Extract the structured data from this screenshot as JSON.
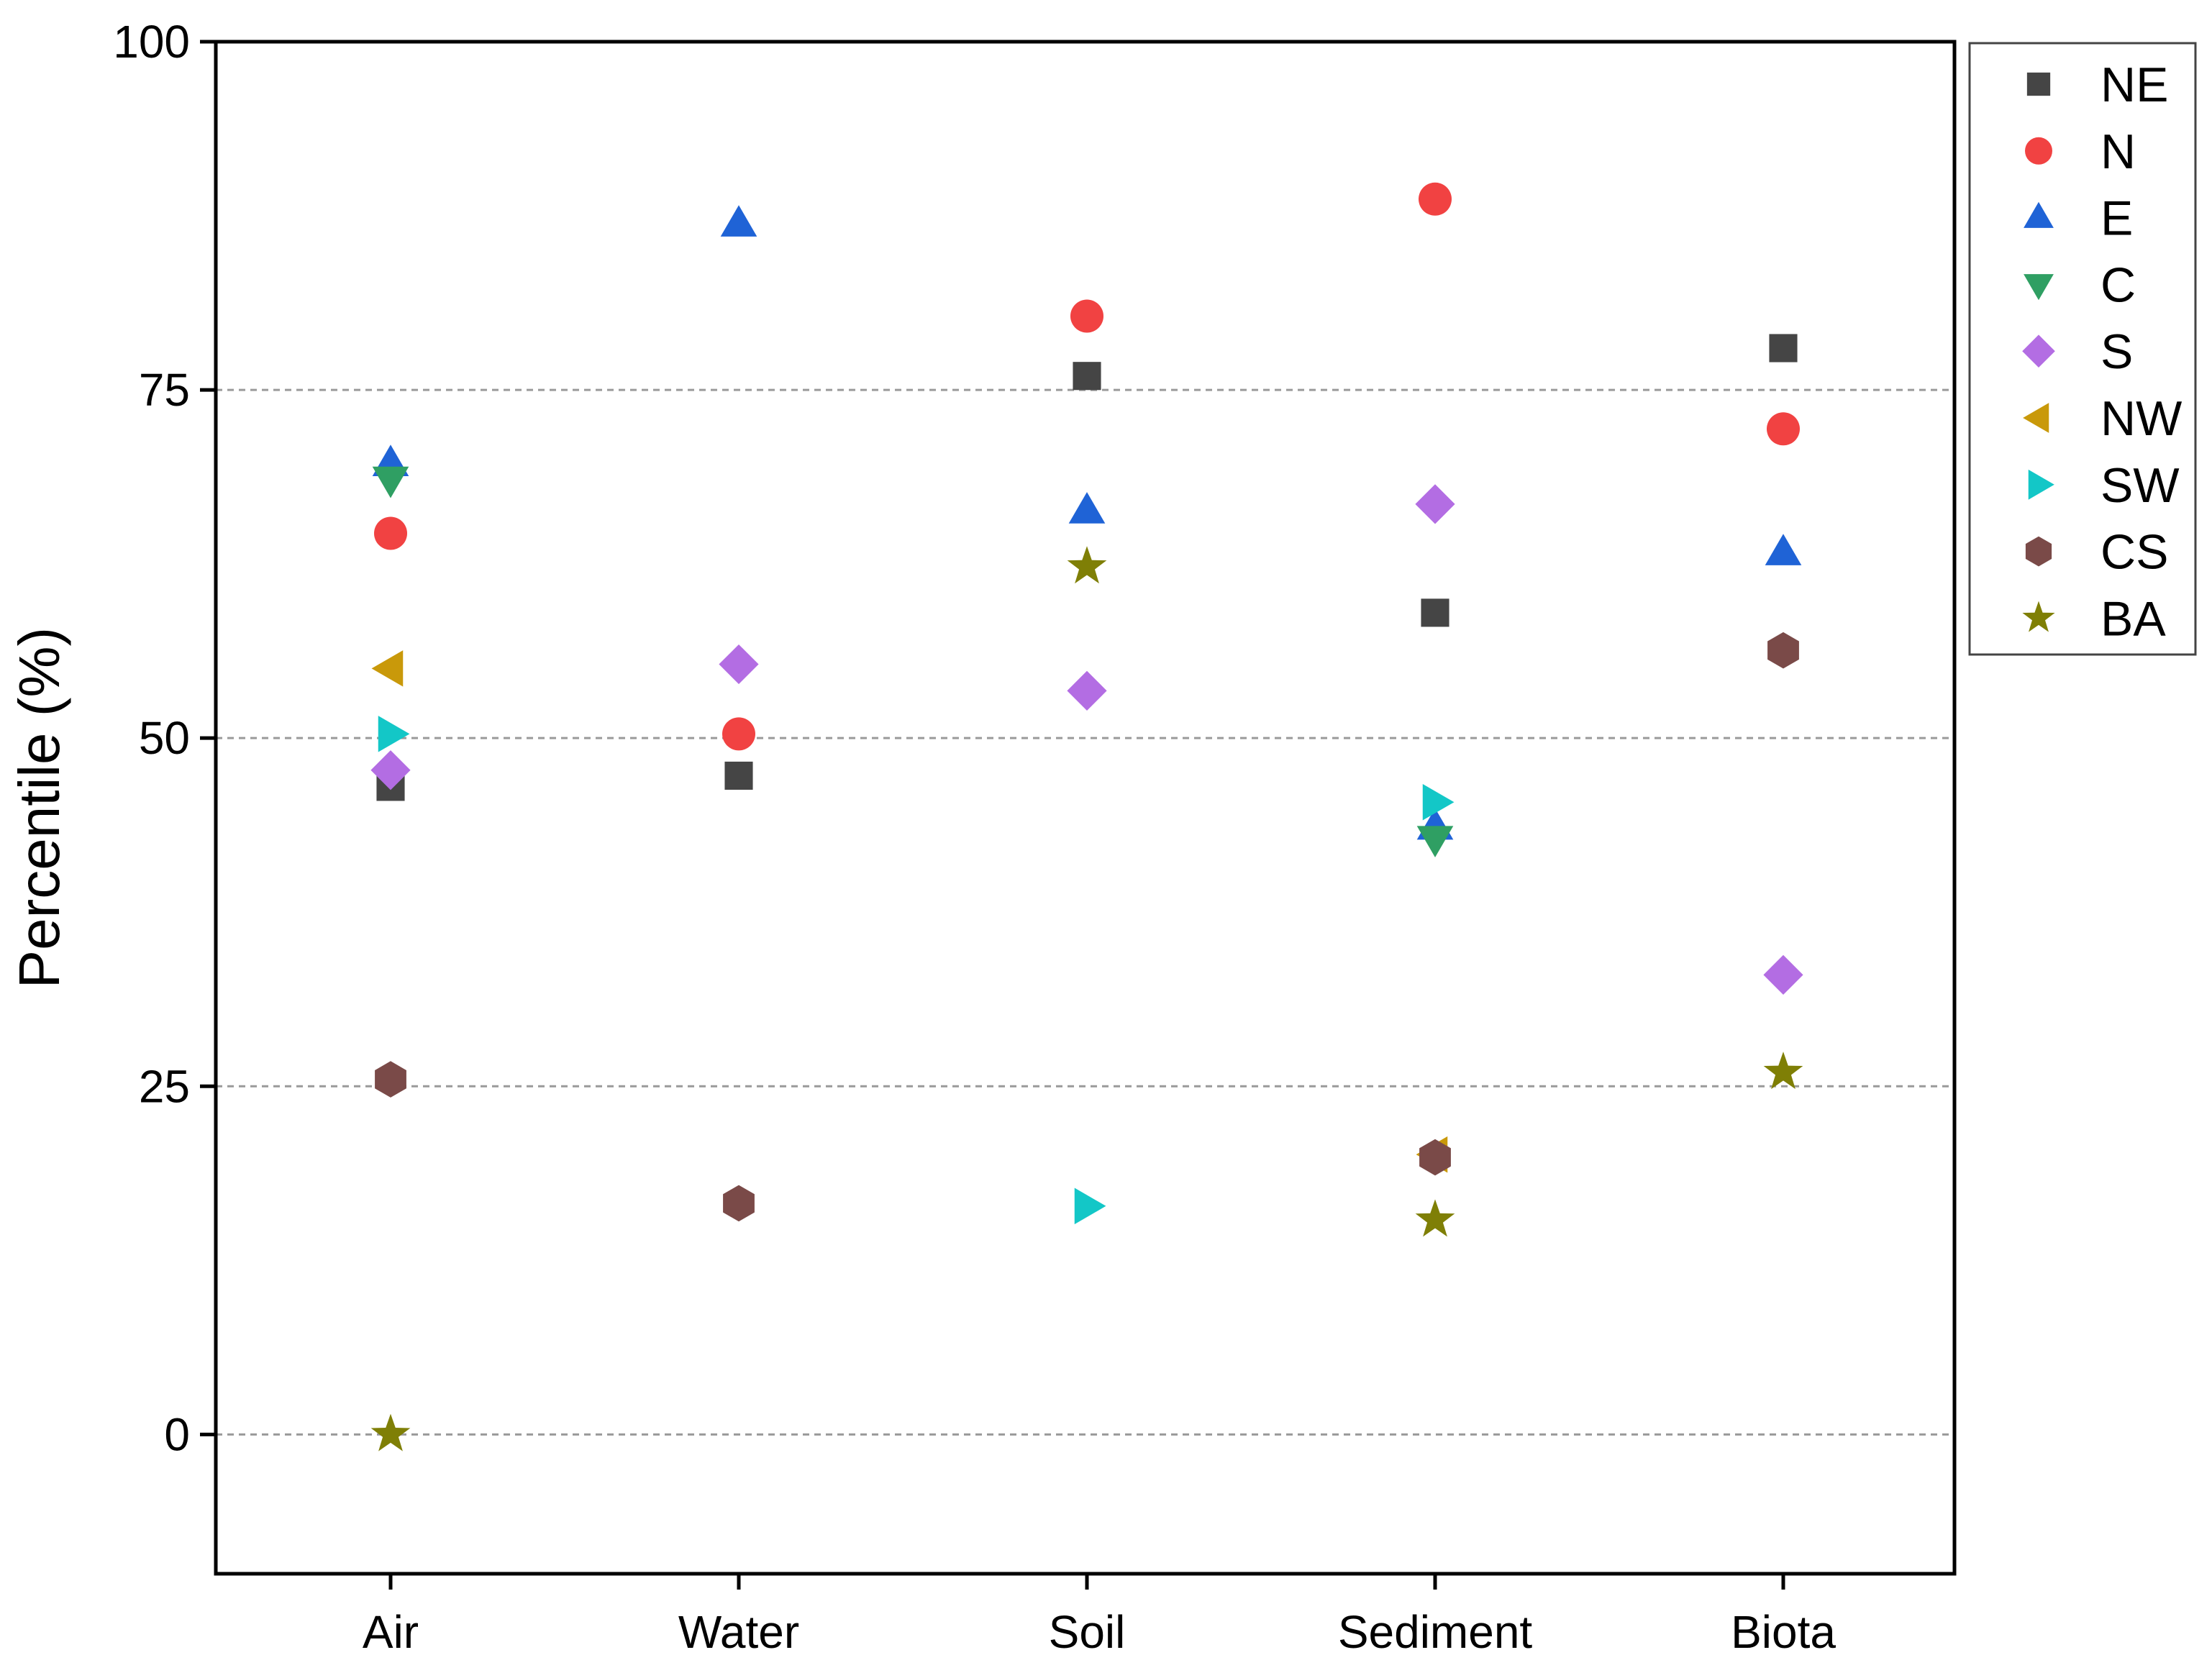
{
  "chart_data": {
    "type": "scatter",
    "title": "",
    "xlabel": "",
    "ylabel": "Percentile (%)",
    "categories": [
      "Air",
      "Water",
      "Soil",
      "Sediment",
      "Biota"
    ],
    "ylim": [
      -10,
      100
    ],
    "yticks": [
      0,
      25,
      50,
      75,
      100
    ],
    "grid": "dashed horizontal at 0, 25, 50, 75",
    "legend_position": "top-right, outside plot",
    "series": [
      {
        "name": "NE",
        "marker": "square",
        "color": "#454545",
        "values": [
          46.5,
          47.3,
          76.0,
          59.0,
          78.0
        ]
      },
      {
        "name": "N",
        "marker": "circle",
        "color": "#f14242",
        "values": [
          64.7,
          50.3,
          80.3,
          88.7,
          72.2
        ]
      },
      {
        "name": "E",
        "marker": "triangle-up",
        "color": "#1f63d6",
        "values": [
          69.7,
          86.9,
          66.3,
          43.6,
          63.3
        ]
      },
      {
        "name": "C",
        "marker": "triangle-down",
        "color": "#2f9f63",
        "values": [
          68.6,
          null,
          null,
          42.8,
          null
        ]
      },
      {
        "name": "S",
        "marker": "diamond",
        "color": "#b36de3",
        "values": [
          47.7,
          55.3,
          53.4,
          66.8,
          33.0
        ]
      },
      {
        "name": "NW",
        "marker": "triangle-left",
        "color": "#c9990a",
        "values": [
          55.0,
          null,
          null,
          20.1,
          null
        ]
      },
      {
        "name": "SW",
        "marker": "triangle-right",
        "color": "#13c7c7",
        "values": [
          50.3,
          null,
          16.4,
          45.4,
          null
        ]
      },
      {
        "name": "CS",
        "marker": "hexagon",
        "color": "#7a4a48",
        "values": [
          25.5,
          16.6,
          null,
          19.9,
          56.3
        ]
      },
      {
        "name": "BA",
        "marker": "star",
        "color": "#7f7f06",
        "values": [
          0.0,
          null,
          62.3,
          15.4,
          26.0
        ]
      }
    ]
  }
}
